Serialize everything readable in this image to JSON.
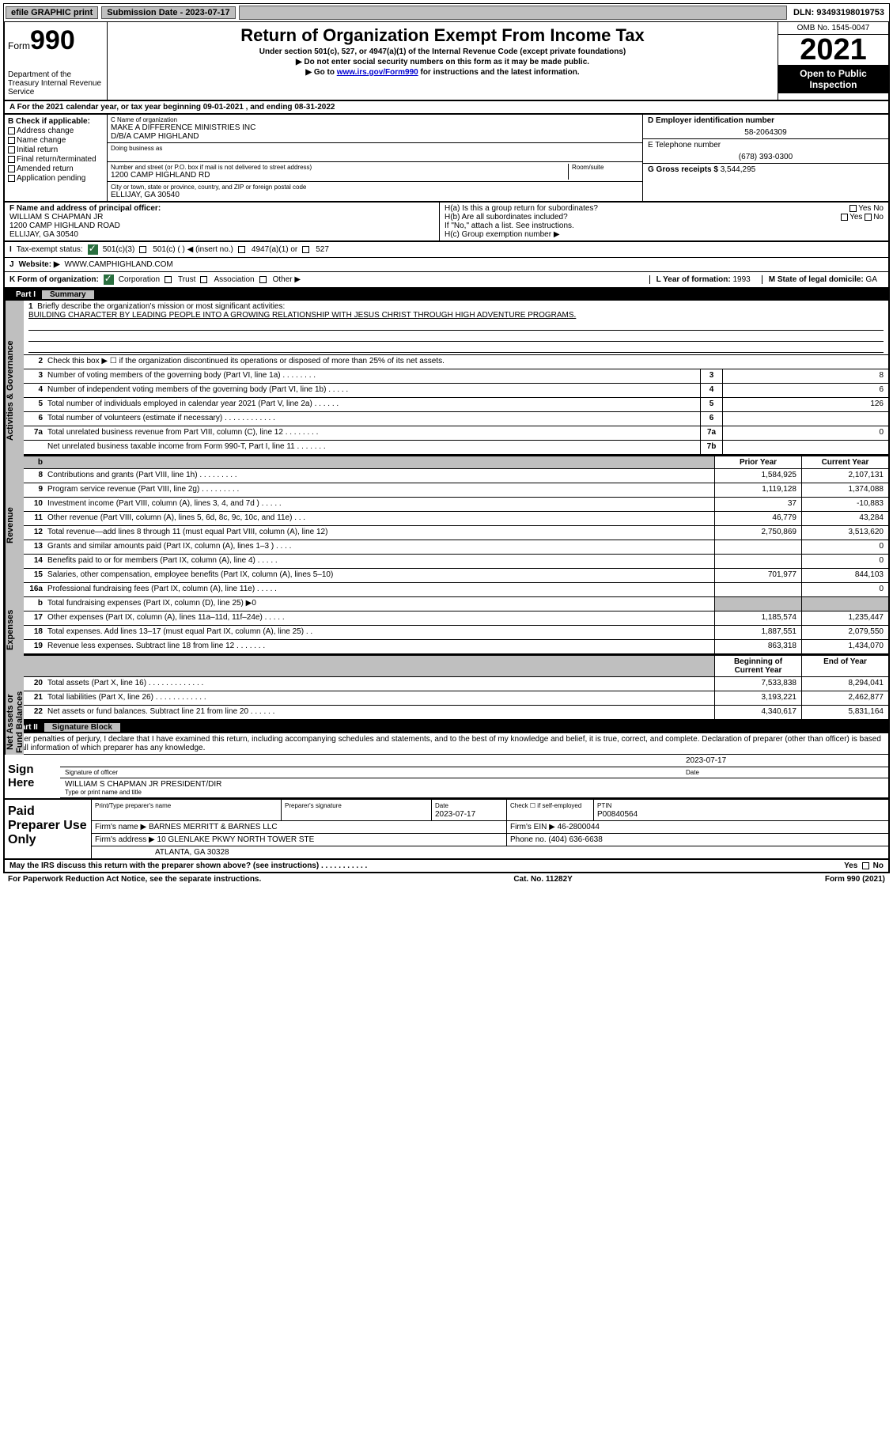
{
  "topbar": {
    "efile": "efile GRAPHIC print",
    "sub_label": "Submission Date - 2023-07-17",
    "dln": "DLN: 93493198019753"
  },
  "header": {
    "form_word": "Form",
    "form_num": "990",
    "dept": "Department of the Treasury Internal Revenue Service",
    "title": "Return of Organization Exempt From Income Tax",
    "sub": "Under section 501(c), 527, or 4947(a)(1) of the Internal Revenue Code (except private foundations)",
    "arrow1": "▶ Do not enter social security numbers on this form as it may be made public.",
    "arrow2_pre": "▶ Go to ",
    "arrow2_link": "www.irs.gov/Form990",
    "arrow2_post": " for instructions and the latest information.",
    "omb": "OMB No. 1545-0047",
    "year": "2021",
    "open": "Open to Public Inspection"
  },
  "A": {
    "line": "A For the 2021 calendar year, or tax year beginning 09-01-2021  , and ending 08-31-2022"
  },
  "B": {
    "title": "B Check if applicable:",
    "items": [
      "Address change",
      "Name change",
      "Initial return",
      "Final return/terminated",
      "Amended return",
      "Application pending"
    ]
  },
  "C": {
    "name_lbl": "C Name of organization",
    "name": "MAKE A DIFFERENCE MINISTRIES INC",
    "dba": "D/B/A CAMP HIGHLAND",
    "dba_lbl": "Doing business as",
    "addr_lbl": "Number and street (or P.O. box if mail is not delivered to street address)",
    "room_lbl": "Room/suite",
    "addr": "1200 CAMP HIGHLAND RD",
    "city_lbl": "City or town, state or province, country, and ZIP or foreign postal code",
    "city": "ELLIJAY, GA  30540"
  },
  "D": {
    "lbl": "D Employer identification number",
    "val": "58-2064309"
  },
  "E": {
    "lbl": "E Telephone number",
    "val": "(678) 393-0300"
  },
  "G": {
    "lbl": "G Gross receipts $",
    "val": "3,544,295"
  },
  "F": {
    "lbl": "F  Name and address of principal officer:",
    "name": "WILLIAM S CHAPMAN JR",
    "addr": "1200 CAMP HIGHLAND ROAD",
    "city": "ELLIJAY, GA  30540"
  },
  "H": {
    "a": "H(a)  Is this a group return for subordinates?",
    "b": "H(b)  Are all subordinates included?",
    "b_note": "If \"No,\" attach a list. See instructions.",
    "c": "H(c)  Group exemption number ▶",
    "yes": "Yes",
    "no": "No"
  },
  "I": {
    "lbl": "Tax-exempt status:",
    "opt1": "501(c)(3)",
    "opt2": "501(c) (  ) ◀ (insert no.)",
    "opt3": "4947(a)(1) or",
    "opt4": "527"
  },
  "J": {
    "lbl": "Website: ▶",
    "val": "WWW.CAMPHIGHLAND.COM"
  },
  "K": {
    "lbl": "K Form of organization:",
    "corp": "Corporation",
    "trust": "Trust",
    "assoc": "Association",
    "other": "Other ▶"
  },
  "L": {
    "lbl": "L Year of formation:",
    "val": "1993"
  },
  "M": {
    "lbl": "M State of legal domicile:",
    "val": "GA"
  },
  "part1": {
    "num": "Part I",
    "title": "Summary"
  },
  "side": {
    "s1": "Activities & Governance",
    "s2": "Revenue",
    "s3": "Expenses",
    "s4": "Net Assets or Fund Balances"
  },
  "summary": {
    "l1": "Briefly describe the organization's mission or most significant activities:",
    "mission": "BUILDING CHARACTER BY LEADING PEOPLE INTO A GROWING RELATIONSHIP WITH JESUS CHRIST THROUGH HIGH ADVENTURE PROGRAMS.",
    "l2": "Check this box ▶ ☐ if the organization discontinued its operations or disposed of more than 25% of its net assets.",
    "rows_top": [
      {
        "n": "3",
        "t": "Number of voting members of the governing body (Part VI, line 1a)  .   .   .   .   .   .   .   .",
        "m": "3",
        "v": "8"
      },
      {
        "n": "4",
        "t": "Number of independent voting members of the governing body (Part VI, line 1b)  .   .   .   .   .",
        "m": "4",
        "v": "6"
      },
      {
        "n": "5",
        "t": "Total number of individuals employed in calendar year 2021 (Part V, line 2a)  .   .   .   .   .   .",
        "m": "5",
        "v": "126"
      },
      {
        "n": "6",
        "t": "Total number of volunteers (estimate if necessary)  .   .   .   .   .   .   .   .   .   .   .   .",
        "m": "6",
        "v": ""
      },
      {
        "n": "7a",
        "t": "Total unrelated business revenue from Part VIII, column (C), line 12  .   .   .   .   .   .   .   .",
        "m": "7a",
        "v": "0"
      },
      {
        "n": "",
        "t": "Net unrelated business taxable income from Form 990-T, Part I, line 11  .   .   .   .   .   .   .",
        "m": "7b",
        "v": ""
      }
    ],
    "col_prior": "Prior Year",
    "col_curr": "Current Year",
    "col_begin": "Beginning of Current Year",
    "col_end": "End of Year",
    "rows_rev": [
      {
        "n": "8",
        "t": "Contributions and grants (Part VIII, line 1h)  .   .   .   .   .   .   .   .   .",
        "p": "1,584,925",
        "c": "2,107,131"
      },
      {
        "n": "9",
        "t": "Program service revenue (Part VIII, line 2g)  .   .   .   .   .   .   .   .   .",
        "p": "1,119,128",
        "c": "1,374,088"
      },
      {
        "n": "10",
        "t": "Investment income (Part VIII, column (A), lines 3, 4, and 7d )  .   .   .   .   .",
        "p": "37",
        "c": "-10,883"
      },
      {
        "n": "11",
        "t": "Other revenue (Part VIII, column (A), lines 5, 6d, 8c, 9c, 10c, and 11e)  .   .   .",
        "p": "46,779",
        "c": "43,284"
      },
      {
        "n": "12",
        "t": "Total revenue—add lines 8 through 11 (must equal Part VIII, column (A), line 12)",
        "p": "2,750,869",
        "c": "3,513,620"
      }
    ],
    "rows_exp": [
      {
        "n": "13",
        "t": "Grants and similar amounts paid (Part IX, column (A), lines 1–3 )  .   .   .   .",
        "p": "",
        "c": "0"
      },
      {
        "n": "14",
        "t": "Benefits paid to or for members (Part IX, column (A), line 4)  .   .   .   .   .",
        "p": "",
        "c": "0"
      },
      {
        "n": "15",
        "t": "Salaries, other compensation, employee benefits (Part IX, column (A), lines 5–10)",
        "p": "701,977",
        "c": "844,103"
      },
      {
        "n": "16a",
        "t": "Professional fundraising fees (Part IX, column (A), line 11e)  .   .   .   .   .",
        "p": "",
        "c": "0"
      },
      {
        "n": "b",
        "t": "Total fundraising expenses (Part IX, column (D), line 25) ▶0",
        "p": "shade",
        "c": "shade"
      },
      {
        "n": "17",
        "t": "Other expenses (Part IX, column (A), lines 11a–11d, 11f–24e)  .   .   .   .   .",
        "p": "1,185,574",
        "c": "1,235,447"
      },
      {
        "n": "18",
        "t": "Total expenses. Add lines 13–17 (must equal Part IX, column (A), line 25)  .   .",
        "p": "1,887,551",
        "c": "2,079,550"
      },
      {
        "n": "19",
        "t": "Revenue less expenses. Subtract line 18 from line 12  .   .   .   .   .   .   .",
        "p": "863,318",
        "c": "1,434,070"
      }
    ],
    "rows_net": [
      {
        "n": "20",
        "t": "Total assets (Part X, line 16)  .   .   .   .   .   .   .   .   .   .   .   .   .",
        "p": "7,533,838",
        "c": "8,294,041"
      },
      {
        "n": "21",
        "t": "Total liabilities (Part X, line 26)  .   .   .   .   .   .   .   .   .   .   .   .",
        "p": "3,193,221",
        "c": "2,462,877"
      },
      {
        "n": "22",
        "t": "Net assets or fund balances. Subtract line 21 from line 20  .   .   .   .   .   .",
        "p": "4,340,617",
        "c": "5,831,164"
      }
    ]
  },
  "part2": {
    "num": "Part II",
    "title": "Signature Block"
  },
  "sig": {
    "intro": "Under penalties of perjury, I declare that I have examined this return, including accompanying schedules and statements, and to the best of my knowledge and belief, it is true, correct, and complete. Declaration of preparer (other than officer) is based on all information of which preparer has any knowledge.",
    "here": "Sign Here",
    "sig_lbl": "Signature of officer",
    "date_lbl": "Date",
    "date_val": "2023-07-17",
    "name": "WILLIAM S CHAPMAN JR  PRESIDENT/DIR",
    "name_lbl": "Type or print name and title"
  },
  "prep": {
    "label": "Paid Preparer Use Only",
    "h1": "Print/Type preparer's name",
    "h2": "Preparer's signature",
    "h3": "Date",
    "h3v": "2023-07-17",
    "h4": "Check ☐ if self-employed",
    "h5": "PTIN",
    "h5v": "P00840564",
    "firm_lbl": "Firm's name    ▶",
    "firm": "BARNES MERRITT & BARNES LLC",
    "ein_lbl": "Firm's EIN ▶",
    "ein": "46-2800044",
    "addr_lbl": "Firm's address ▶",
    "addr": "10 GLENLAKE PKWY NORTH TOWER STE",
    "addr2": "ATLANTA, GA  30328",
    "phone_lbl": "Phone no.",
    "phone": "(404) 636-6638"
  },
  "footer": {
    "q": "May the IRS discuss this return with the preparer shown above? (see instructions)  .   .   .   .   .   .   .   .   .   .   .",
    "yes": "Yes",
    "no": "No",
    "pra": "For Paperwork Reduction Act Notice, see the separate instructions.",
    "cat": "Cat. No. 11282Y",
    "form": "Form 990 (2021)"
  },
  "colors": {
    "green": "#2a6f3f",
    "gray": "#bfbfbf",
    "link": "#0000d0"
  }
}
